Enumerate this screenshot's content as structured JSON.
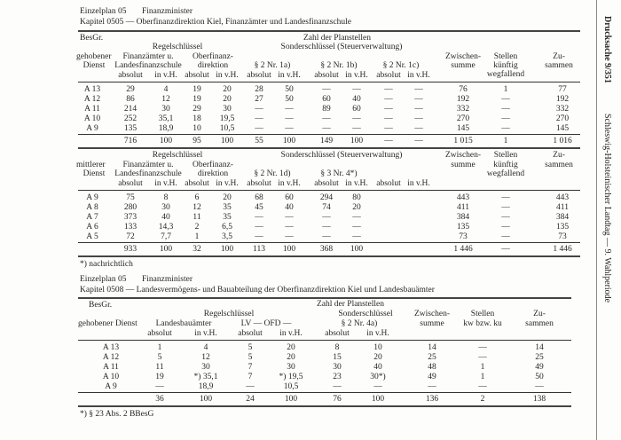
{
  "side": {
    "doc": "Drucksache 9/351",
    "landtag": "Schleswig-Holsteinischer Landtag — 9. Wahlperiode"
  },
  "sec1": {
    "einzelplan": "Einzelplan 05",
    "ministry": "Finanzminister",
    "kapitel": "Kapitel    0505 — Oberfinanzdirektion Kiel, Finanzämter und Landesfinanzschule"
  },
  "t1": {
    "h": {
      "besgr": "BesGr.",
      "zahl": "Zahl der Planstellen",
      "regel": "Regelschlüssel",
      "sonder": "Sonderschlüssel (Steuerverwaltung)",
      "dienst1": "gehobener",
      "dienst2": "Dienst",
      "fa1": "Finanzämter u.",
      "fa2": "Landesfinanzschule",
      "ofd1": "Oberfinanz-",
      "ofd2": "direktion",
      "p1": "§ 2 Nr. 1a)",
      "p2": "§ 2 Nr. 1b)",
      "p3": "§ 2 Nr. 1c)",
      "zw1": "Zwischen-",
      "zw2": "summe",
      "st1": "Stellen",
      "st2": "künftig",
      "st3": "wegfallend",
      "zu1": "Zu-",
      "zu2": "sammen",
      "sub": [
        "absolut",
        "in v.H.",
        "absolut",
        "in v.H.",
        "absolut",
        "in v.H.",
        "absolut",
        "in v.H.",
        "absolut",
        "in v.H."
      ]
    },
    "rows": [
      [
        "A 13",
        "29",
        "4",
        "19",
        "20",
        "28",
        "50",
        "—",
        "—",
        "—",
        "—",
        "76",
        "1",
        "77"
      ],
      [
        "A 12",
        "86",
        "12",
        "19",
        "20",
        "27",
        "50",
        "60",
        "40",
        "—",
        "—",
        "192",
        "—",
        "192"
      ],
      [
        "A 11",
        "214",
        "30",
        "29",
        "30",
        "—",
        "—",
        "89",
        "60",
        "—",
        "—",
        "332",
        "—",
        "332"
      ],
      [
        "A 10",
        "252",
        "35,1",
        "18",
        "19,5",
        "—",
        "—",
        "—",
        "—",
        "—",
        "—",
        "270",
        "—",
        "270"
      ],
      [
        "A  9",
        "135",
        "18,9",
        "10",
        "10,5",
        "—",
        "—",
        "—",
        "—",
        "—",
        "—",
        "145",
        "—",
        "145"
      ]
    ],
    "total": [
      "",
      "716",
      "100",
      "95",
      "100",
      "55",
      "100",
      "149",
      "100",
      "—",
      "—",
      "1 015",
      "1",
      "1 016"
    ]
  },
  "t2": {
    "h": {
      "regel": "Regelschlüssel",
      "sonder": "Sonderschlüssel (Steuerverwaltung)",
      "dienst1": "mittlerer",
      "dienst2": "Dienst",
      "fa1": "Finanzämter u.",
      "fa2": "Landesfinanzschule",
      "ofd1": "Oberfinanz-",
      "ofd2": "direktion",
      "p1": "§ 2 Nr. 1d)",
      "p2": "§ 3 Nr. 4*)",
      "zw1": "Zwischen-",
      "zw2": "summe",
      "st1": "Stellen",
      "st2": "künftig",
      "st3": "wegfallend",
      "zu1": "Zu-",
      "zu2": "sammen",
      "sub": [
        "absolut",
        "in v.H.",
        "absolut",
        "in v.H.",
        "absolut",
        "in v.H.",
        "absolut",
        "in v.H.",
        "absolut",
        "in v.H."
      ]
    },
    "rows": [
      [
        "A  9",
        "75",
        "8",
        "6",
        "20",
        "68",
        "60",
        "294",
        "80",
        "",
        "",
        "443",
        "—",
        "443"
      ],
      [
        "A  8",
        "280",
        "30",
        "12",
        "35",
        "45",
        "40",
        "74",
        "20",
        "",
        "",
        "411",
        "—",
        "411"
      ],
      [
        "A  7",
        "373",
        "40",
        "11",
        "35",
        "—",
        "—",
        "—",
        "—",
        "",
        "",
        "384",
        "—",
        "384"
      ],
      [
        "A  6",
        "133",
        "14,3",
        "2",
        "6,5",
        "—",
        "—",
        "—",
        "—",
        "",
        "",
        "135",
        "—",
        "135"
      ],
      [
        "A  5",
        "72",
        "7,7",
        "1",
        "3,5",
        "—",
        "—",
        "—",
        "—",
        "",
        "",
        "73",
        "—",
        "73"
      ]
    ],
    "total": [
      "",
      "933",
      "100",
      "32",
      "100",
      "113",
      "100",
      "368",
      "100",
      "",
      "",
      "1 446",
      "—",
      "1 446"
    ],
    "footnote": "*) nachrichtlich"
  },
  "sec2": {
    "einzelplan": "Einzelplan 05",
    "ministry": "Finanzminister",
    "kapitel": "Kapitel    0508 — Landesvermögens- und Bauabteilung der Oberfinanzdirektion Kiel und Landesbauämter"
  },
  "t3": {
    "h": {
      "besgr": "BesGr.",
      "zahl": "Zahl der Planstellen",
      "regel": "Regelschlüssel",
      "sonder": "Sonderschlüssel",
      "dienst": "gehobener Dienst",
      "lba": "Landesbauämter",
      "lvofd": "LV — OFD —",
      "p1": "§ 2 Nr. 4a)",
      "zw1": "Zwischen-",
      "zw2": "summe",
      "st1": "Stellen",
      "st2": "kw bzw. ku",
      "zu1": "Zu-",
      "zu2": "sammen",
      "sub": [
        "absolut",
        "in v.H.",
        "absolut",
        "in v.H.",
        "absolut",
        "in v.H."
      ]
    },
    "rows": [
      [
        "A 13",
        "1",
        "4",
        "5",
        "20",
        "8",
        "10",
        "14",
        "—",
        "14"
      ],
      [
        "A 12",
        "5",
        "12",
        "5",
        "20",
        "15",
        "20",
        "25",
        "—",
        "25"
      ],
      [
        "A 11",
        "11",
        "30",
        "7",
        "30",
        "30",
        "40",
        "48",
        "1",
        "49"
      ],
      [
        "A 10",
        "19",
        "*)  35,1",
        "7",
        "*)  19,5",
        "23",
        "30*)",
        "49",
        "1",
        "50"
      ],
      [
        "A  9",
        "—",
        "18,9",
        "—",
        "10,5",
        "—",
        "—",
        "—",
        "—",
        "—"
      ]
    ],
    "total": [
      "",
      "36",
      "100",
      "24",
      "100",
      "76",
      "100",
      "136",
      "2",
      "138"
    ],
    "footnote": "*) § 23 Abs. 2 BBesG"
  }
}
